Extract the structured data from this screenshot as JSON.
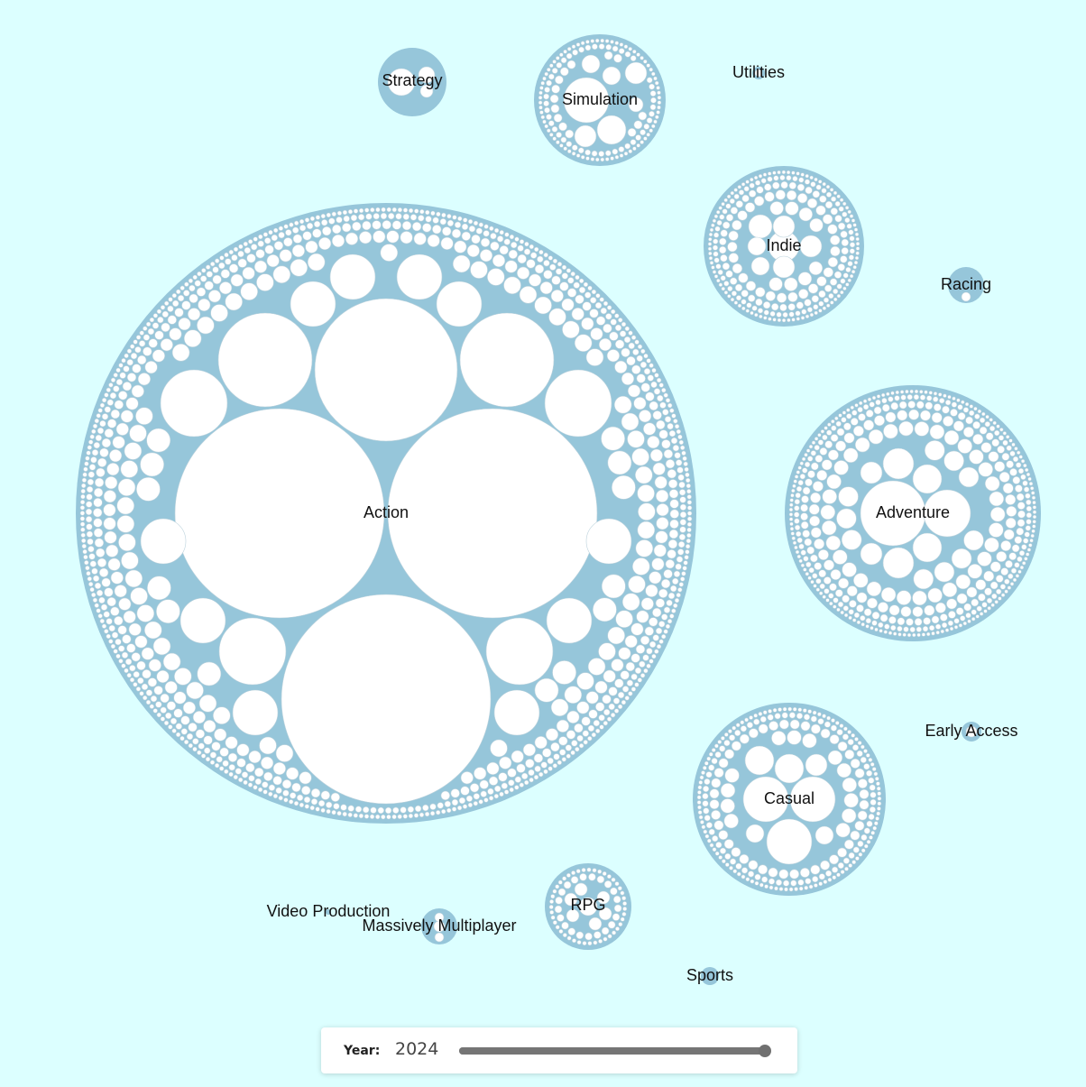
{
  "chart_data": {
    "type": "packed-bubble",
    "series": [
      {
        "name": "Action",
        "leaf_count": 480
      },
      {
        "name": "Adventure",
        "leaf_count": 260
      },
      {
        "name": "Casual",
        "leaf_count": 120
      },
      {
        "name": "Indie",
        "leaf_count": 95
      },
      {
        "name": "Simulation",
        "leaf_count": 40
      },
      {
        "name": "RPG",
        "leaf_count": 18
      },
      {
        "name": "Strategy",
        "leaf_count": 12
      },
      {
        "name": "Massively Multiplayer",
        "leaf_count": 3
      },
      {
        "name": "Racing",
        "leaf_count": 3
      },
      {
        "name": "Early Access",
        "leaf_count": 1
      },
      {
        "name": "Sports",
        "leaf_count": 1
      },
      {
        "name": "Utilities",
        "leaf_count": 1
      },
      {
        "name": "Video Production",
        "leaf_count": 1
      }
    ],
    "colors": {
      "cluster": "#96c6da",
      "leaf": "#ffffff",
      "background": "#dcffff"
    }
  },
  "controls": {
    "year_label": "Year:",
    "year_value": "2024",
    "slider_fraction": 1.0
  }
}
